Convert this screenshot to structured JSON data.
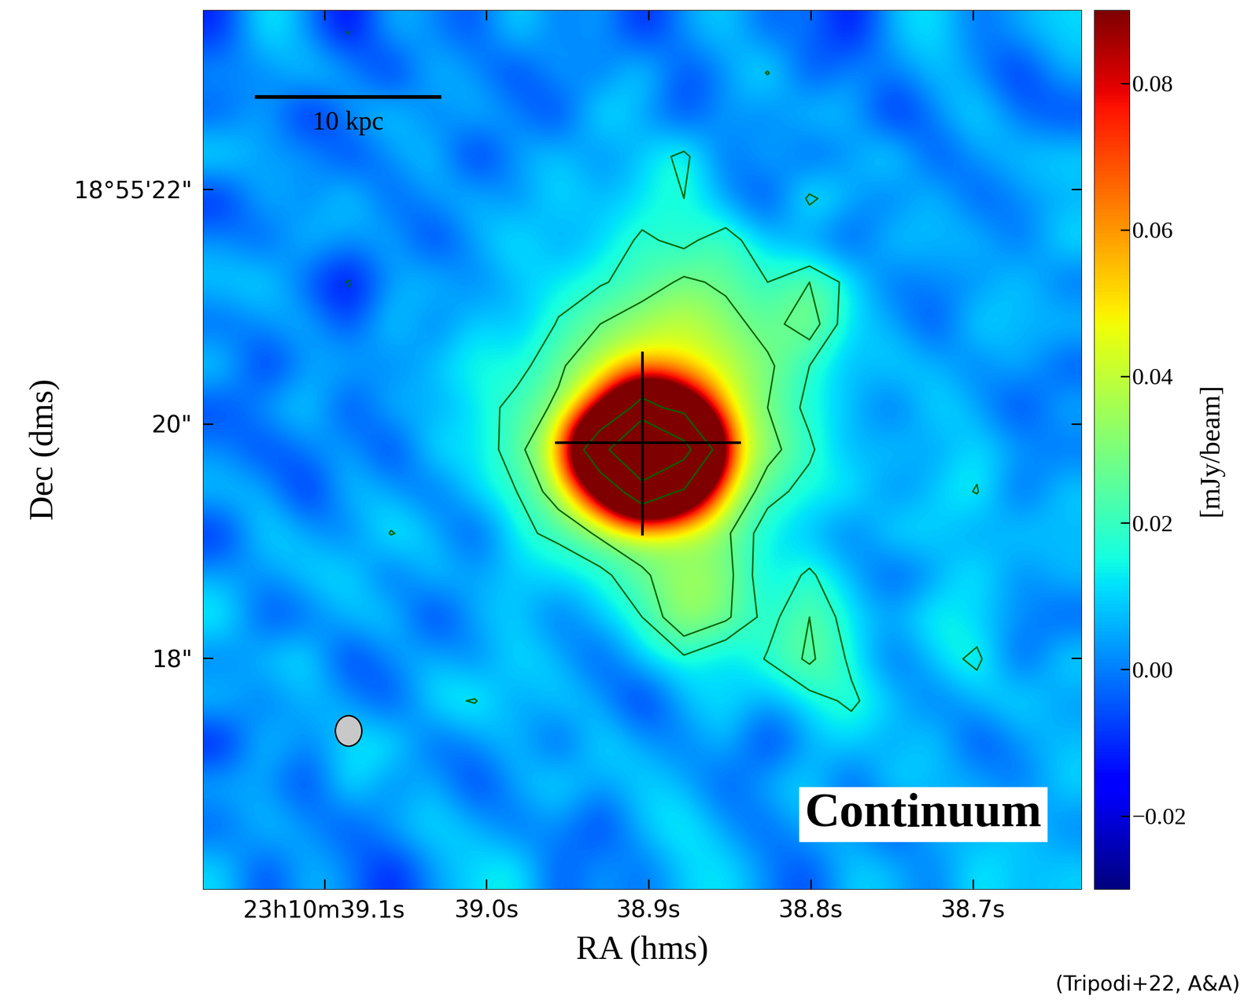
{
  "chart_data": {
    "type": "heatmap",
    "xlabel": "RA (hms)",
    "ylabel": "Dec (dms)",
    "annotation": "Continuum",
    "credit": "(Tripodi+22, A&A)",
    "colorbar_label": "[mJy/beam]",
    "xlim": [
      39.175,
      38.633
    ],
    "ylim": [
      16.03,
      23.53
    ],
    "xticks": [
      {
        "value": 39.1,
        "label": "23h10m39.1s"
      },
      {
        "value": 39.0,
        "label": "39.0s"
      },
      {
        "value": 38.9,
        "label": "38.9s"
      },
      {
        "value": 38.8,
        "label": "38.8s"
      },
      {
        "value": 38.7,
        "label": "38.7s"
      }
    ],
    "yticks": [
      {
        "value": 18,
        "label": "18\""
      },
      {
        "value": 20,
        "label": "20\""
      },
      {
        "value": 22,
        "label": "18°55'22\""
      }
    ],
    "colorbar_range": [
      -0.03,
      0.09
    ],
    "colorbar_ticks": [
      {
        "value": -0.02,
        "label": "−0.02"
      },
      {
        "value": 0.0,
        "label": "0.00"
      },
      {
        "value": 0.02,
        "label": "0.02"
      },
      {
        "value": 0.04,
        "label": "0.04"
      },
      {
        "value": 0.06,
        "label": "0.06"
      },
      {
        "value": 0.08,
        "label": "0.08"
      }
    ],
    "contour_levels": [
      -0.018,
      0.018,
      0.028,
      0.15,
      0.3
    ],
    "cross": {
      "x": 38.904,
      "y": 19.84,
      "x_span": [
        38.957,
        38.844
      ],
      "y_span": [
        19.06,
        20.61
      ]
    },
    "scale_bar": {
      "label": "10 kpc",
      "x0": 39.142,
      "x1": 39.029,
      "y": 22.79
    },
    "beam": {
      "x": 39.085,
      "y": 17.38,
      "width": 0.0163,
      "height": 0.26
    },
    "cells": [
      [
        -0.012,
        0.018,
        0.002,
        -0.02,
        0.01,
        0.001,
        -0.008,
        0.015,
        -0.003,
        0.007,
        -0.015,
        0.004,
        0.012,
        -0.006,
        0.002,
        -0.018,
        0.009,
        0.014,
        -0.004,
        0.006,
        0.011
      ],
      [
        0.004,
        -0.002,
        0.013,
        0.006,
        -0.016,
        0.011,
        0.003,
        -0.012,
        0.008,
        -0.005,
        0.016,
        -0.009,
        0.001,
        0.019,
        -0.011,
        0.005,
        -0.002,
        0.01,
        0.003,
        -0.014,
        0.007
      ],
      [
        -0.006,
        0.009,
        -0.018,
        0.003,
        0.014,
        -0.004,
        0.01,
        0.002,
        -0.013,
        0.018,
        0.004,
        -0.01,
        0.007,
        -0.003,
        0.012,
        0.008,
        -0.016,
        0.001,
        0.015,
        -0.002,
        -0.009
      ],
      [
        0.016,
        0.001,
        0.007,
        -0.011,
        0.002,
        0.013,
        -0.017,
        0.006,
        0.011,
        -0.001,
        0.009,
        0.022,
        -0.006,
        0.01,
        -0.008,
        0.003,
        0.017,
        -0.01,
        0.004,
        0.009,
        0.012
      ],
      [
        -0.014,
        0.011,
        -0.003,
        0.015,
        -0.007,
        0.004,
        0.01,
        -0.002,
        0.014,
        0.006,
        0.012,
        0.018,
        0.004,
        -0.012,
        0.021,
        0.006,
        -0.004,
        0.012,
        -0.008,
        0.002,
        0.005
      ],
      [
        0.003,
        -0.008,
        0.012,
        0.001,
        0.009,
        -0.013,
        0.005,
        0.016,
        0.002,
        0.01,
        0.02,
        0.015,
        0.024,
        0.008,
        0.002,
        -0.009,
        0.013,
        0.005,
        0.011,
        -0.006,
        0.014
      ],
      [
        0.01,
        0.014,
        -0.006,
        -0.019,
        0.004,
        0.011,
        -0.002,
        0.008,
        0.013,
        0.017,
        0.022,
        0.03,
        0.026,
        0.018,
        0.028,
        0.014,
        -0.005,
        0.003,
        -0.001,
        0.013,
        -0.004
      ],
      [
        -0.005,
        0.003,
        0.009,
        -0.01,
        0.015,
        -0.004,
        0.012,
        0.006,
        0.019,
        0.028,
        0.035,
        0.042,
        0.032,
        0.024,
        0.034,
        0.01,
        0.007,
        -0.011,
        0.016,
        0.004,
        0.01
      ],
      [
        0.013,
        -0.015,
        0.004,
        0.008,
        -0.002,
        0.009,
        0.017,
        0.014,
        0.026,
        0.038,
        0.052,
        0.048,
        0.04,
        0.03,
        0.018,
        0.005,
        0.012,
        0.008,
        -0.003,
        0.01,
        -0.007
      ],
      [
        -0.009,
        0.006,
        0.014,
        -0.012,
        0.011,
        0.003,
        0.012,
        0.022,
        0.03,
        0.07,
        0.18,
        0.12,
        0.046,
        0.028,
        0.015,
        0.009,
        -0.006,
        0.014,
        0.006,
        -0.012,
        0.008
      ],
      [
        0.002,
        -0.011,
        0.001,
        0.007,
        -0.014,
        0.016,
        0.01,
        0.024,
        0.044,
        0.22,
        0.6,
        0.35,
        0.06,
        0.032,
        0.02,
        0.004,
        0.011,
        0.002,
        0.013,
        0.005,
        -0.003
      ],
      [
        0.01,
        0.008,
        -0.017,
        0.012,
        0.005,
        -0.006,
        0.013,
        0.018,
        0.034,
        0.09,
        0.2,
        0.14,
        0.042,
        0.022,
        0.014,
        0.016,
        -0.002,
        0.009,
        0.019,
        -0.008,
        0.011
      ],
      [
        -0.013,
        0.015,
        0.006,
        -0.004,
        0.019,
        0.008,
        -0.01,
        0.016,
        0.02,
        0.03,
        0.036,
        0.033,
        0.03,
        0.012,
        0.008,
        -0.004,
        0.015,
        0.011,
        0.001,
        0.012,
        0.006
      ],
      [
        0.005,
        0.001,
        0.011,
        0.014,
        -0.008,
        0.012,
        0.004,
        0.009,
        0.012,
        0.015,
        0.026,
        0.036,
        0.032,
        0.01,
        0.02,
        0.007,
        -0.008,
        0.003,
        0.017,
        -0.002,
        0.009
      ],
      [
        0.017,
        -0.009,
        -0.004,
        0.009,
        0.013,
        -0.015,
        0.007,
        0.011,
        -0.005,
        0.01,
        0.018,
        0.038,
        0.03,
        0.014,
        0.028,
        0.012,
        0.005,
        0.018,
        0.008,
        0.004,
        -0.006
      ],
      [
        -0.002,
        0.01,
        0.016,
        -0.014,
        0.003,
        0.009,
        -0.003,
        0.014,
        0.008,
        -0.009,
        0.012,
        0.016,
        0.008,
        0.019,
        0.03,
        0.016,
        -0.006,
        0.01,
        0.022,
        -0.01,
        0.013
      ],
      [
        0.011,
        -0.004,
        0.008,
        0.005,
        -0.011,
        0.014,
        0.019,
        0.001,
        0.012,
        0.006,
        -0.016,
        0.009,
        0.013,
        0.004,
        0.014,
        0.02,
        0.01,
        -0.004,
        0.007,
        0.015,
        0.002
      ],
      [
        -0.016,
        0.013,
        -0.001,
        0.012,
        0.017,
        -0.007,
        0.002,
        0.011,
        -0.01,
        0.015,
        0.005,
        -0.003,
        0.011,
        -0.014,
        0.006,
        0.012,
        0.002,
        0.014,
        -0.011,
        0.003,
        0.008
      ],
      [
        0.008,
        0.004,
        -0.012,
        0.018,
        -0.003,
        0.01,
        -0.013,
        0.006,
        0.015,
        0.002,
        0.012,
        0.007,
        -0.008,
        0.009,
        0.013,
        -0.01,
        0.016,
        0.004,
        0.009,
        -0.005,
        0.012
      ],
      [
        -0.006,
        0.012,
        0.003,
        -0.009,
        0.007,
        0.013,
        0.008,
        -0.005,
        0.004,
        -0.012,
        0.009,
        0.017,
        0.003,
        -0.006,
        0.01,
        0.005,
        -0.012,
        0.011,
        0.002,
        0.013,
        -0.001
      ],
      [
        0.012,
        -0.01,
        0.009,
        0.002,
        -0.015,
        0.004,
        0.011,
        0.017,
        -0.008,
        0.006,
        -0.004,
        0.01,
        0.014,
        0.001,
        -0.009,
        0.012,
        0.008,
        -0.003,
        0.016,
        0.006,
        0.01
      ]
    ]
  }
}
